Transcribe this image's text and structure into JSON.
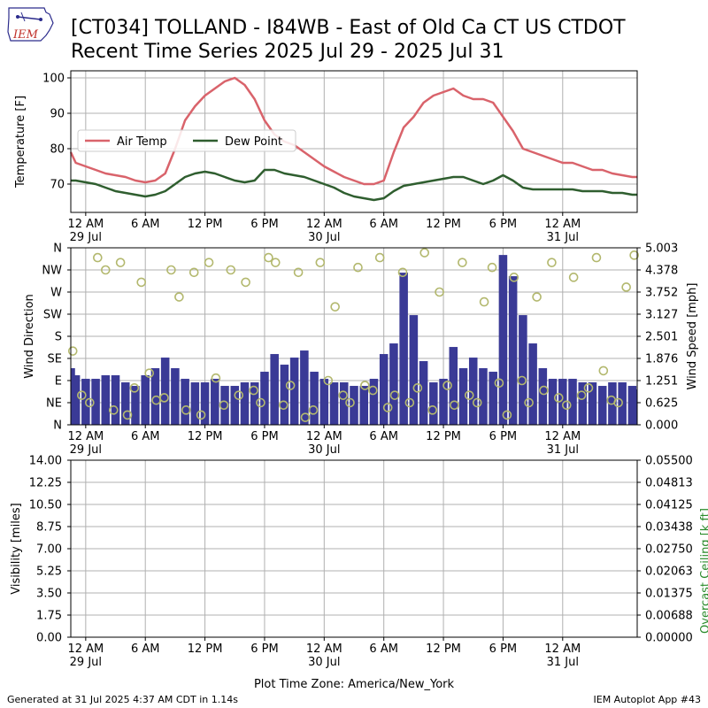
{
  "header": {
    "logo_text": "IEM",
    "title_line1": "[CT034] TOLLAND - I84WB - East of Old Ca CT US  CTDOT",
    "title_line2": "Recent Time Series 2025 Jul 29 - 2025 Jul 31"
  },
  "footer": {
    "generated": "Generated at 31 Jul 2025 4:37 AM CDT in 1.14s",
    "app": "IEM Autoplot App #43"
  },
  "colors": {
    "air_temp": "#d9636b",
    "dew_point": "#2f5e2f",
    "wind_speed_bars": "#3a3a96",
    "wind_dir_markers": "#b3b86e",
    "ceiling_axis": "#2a8a2a",
    "grid": "#b0b0b0"
  },
  "chart_data": [
    {
      "type": "line",
      "ylabel": "Temperature [F]",
      "ylim": [
        62,
        102
      ],
      "yticks": [
        70,
        80,
        90,
        100
      ],
      "x_unit": "hours since 2025-07-29 00:00 local",
      "xlim": [
        -1.5,
        55.5
      ],
      "xticks": [
        {
          "label": "12 AM",
          "sub": "29 Jul"
        },
        {
          "label": "6 AM",
          "sub": ""
        },
        {
          "label": "12 PM",
          "sub": ""
        },
        {
          "label": "6 PM",
          "sub": ""
        },
        {
          "label": "12 AM",
          "sub": "30 Jul"
        },
        {
          "label": "6 AM",
          "sub": ""
        },
        {
          "label": "12 PM",
          "sub": ""
        },
        {
          "label": "6 PM",
          "sub": ""
        },
        {
          "label": "12 AM",
          "sub": "31 Jul"
        }
      ],
      "grid": true,
      "legend_position": "center-left",
      "series": [
        {
          "name": "Air Temp",
          "x": [
            -1.5,
            -1,
            0,
            1,
            2,
            3,
            4,
            5,
            6,
            7,
            8,
            9,
            10,
            11,
            12,
            13,
            14,
            15,
            16,
            17,
            18,
            19,
            20,
            21,
            22,
            23,
            24,
            25,
            26,
            27,
            28,
            29,
            30,
            31,
            32,
            33,
            34,
            35,
            36,
            37,
            38,
            39,
            40,
            41,
            42,
            43,
            44,
            45,
            46,
            47,
            48,
            49,
            50,
            51,
            52,
            53,
            54,
            55,
            55.5
          ],
          "y": [
            79,
            76,
            75,
            74,
            73,
            72.5,
            72,
            71,
            70.5,
            71,
            73,
            80,
            88,
            92,
            95,
            97,
            99,
            100,
            98,
            94,
            88,
            84,
            82,
            81,
            79,
            77,
            75,
            73.5,
            72,
            71,
            70,
            70,
            71,
            79,
            86,
            89,
            93,
            95,
            96,
            97,
            95,
            94,
            94,
            93,
            89,
            85,
            80,
            79,
            78,
            77,
            76,
            76,
            75,
            74,
            74,
            73,
            72.5,
            72,
            72
          ]
        },
        {
          "name": "Dew Point",
          "x": [
            -1.5,
            -1,
            0,
            1,
            2,
            3,
            4,
            5,
            6,
            7,
            8,
            9,
            10,
            11,
            12,
            13,
            14,
            15,
            16,
            17,
            18,
            19,
            20,
            21,
            22,
            23,
            24,
            25,
            26,
            27,
            28,
            29,
            30,
            31,
            32,
            33,
            34,
            35,
            36,
            37,
            38,
            39,
            40,
            41,
            42,
            43,
            44,
            45,
            46,
            47,
            48,
            49,
            50,
            51,
            52,
            53,
            54,
            55,
            55.5
          ],
          "y": [
            71,
            71,
            70.5,
            70,
            69,
            68,
            67.5,
            67,
            66.5,
            67,
            68,
            70,
            72,
            73,
            73.5,
            73,
            72,
            71,
            70.5,
            71,
            74,
            74,
            73,
            72.5,
            72,
            71,
            70,
            69,
            67.5,
            66.5,
            66,
            65.5,
            66,
            68,
            69.5,
            70,
            70.5,
            71,
            71.5,
            72,
            72,
            71,
            70,
            71,
            72.5,
            71,
            69,
            68.5,
            68.5,
            68.5,
            68.5,
            68.5,
            68,
            68,
            68,
            67.5,
            67.5,
            67,
            67
          ]
        }
      ]
    },
    {
      "type": "bar",
      "ylabel": "Wind Direction",
      "ylabel_right": "Wind Speed [mph]",
      "direction_ticks": [
        "N",
        "NE",
        "E",
        "SE",
        "S",
        "SW",
        "W",
        "NW",
        "N"
      ],
      "ylim_direction": [
        0,
        360
      ],
      "ylim_speed": [
        0,
        5.003
      ],
      "speed_ticks": [
        "0.000",
        "0.625",
        "1.251",
        "1.876",
        "2.501",
        "3.127",
        "3.752",
        "4.378",
        "5.003"
      ],
      "xlim": [
        -1.5,
        55.5
      ],
      "grid": true,
      "series": [
        {
          "name": "Wind Speed",
          "x": [
            -1.5,
            -1,
            0,
            1,
            2,
            3,
            4,
            5,
            6,
            7,
            8,
            9,
            10,
            11,
            12,
            13,
            14,
            15,
            16,
            17,
            18,
            19,
            20,
            21,
            22,
            23,
            24,
            25,
            26,
            27,
            28,
            29,
            30,
            31,
            32,
            33,
            34,
            35,
            36,
            37,
            38,
            39,
            40,
            41,
            42,
            43,
            44,
            45,
            46,
            47,
            48,
            49,
            50,
            51,
            52,
            53,
            54,
            55,
            55.5
          ],
          "values": [
            1.6,
            1.4,
            1.3,
            1.3,
            1.4,
            1.4,
            1.2,
            1.1,
            1.4,
            1.6,
            1.9,
            1.6,
            1.3,
            1.2,
            1.2,
            1.3,
            1.1,
            1.1,
            1.2,
            1.2,
            1.5,
            2.0,
            1.7,
            1.9,
            2.1,
            1.5,
            1.3,
            1.2,
            1.2,
            1.1,
            1.1,
            1.3,
            2.0,
            2.3,
            4.3,
            3.1,
            1.8,
            1.2,
            1.3,
            2.2,
            1.6,
            1.9,
            1.6,
            1.5,
            4.8,
            4.2,
            3.1,
            2.3,
            1.6,
            1.3,
            1.3,
            1.3,
            1.2,
            1.2,
            1.1,
            1.2,
            1.2,
            1.1,
            1.0
          ]
        },
        {
          "name": "Wind Direction",
          "x": [
            -1.3,
            -0.4,
            0.4,
            1.2,
            2.0,
            2.8,
            3.5,
            4.2,
            4.9,
            5.6,
            6.4,
            7.1,
            7.9,
            8.6,
            9.4,
            10.1,
            10.9,
            11.6,
            12.4,
            13.1,
            13.9,
            14.6,
            15.4,
            16.1,
            16.9,
            17.6,
            18.4,
            19.1,
            19.9,
            20.6,
            21.4,
            22.1,
            22.9,
            23.6,
            24.4,
            25.1,
            25.9,
            26.6,
            27.4,
            28.1,
            28.9,
            29.6,
            30.4,
            31.1,
            31.9,
            32.6,
            33.4,
            34.1,
            34.9,
            35.6,
            36.4,
            37.1,
            37.9,
            38.6,
            39.4,
            40.1,
            40.9,
            41.6,
            42.4,
            43.1,
            43.9,
            44.6,
            45.4,
            46.1,
            46.9,
            47.6,
            48.4,
            49.1,
            49.9,
            50.6,
            51.4,
            52.1,
            52.9,
            53.6,
            54.4,
            55.2
          ],
          "y": [
            150,
            60,
            45,
            340,
            315,
            30,
            330,
            20,
            75,
            290,
            105,
            50,
            55,
            315,
            260,
            30,
            310,
            20,
            330,
            95,
            40,
            315,
            60,
            290,
            70,
            45,
            340,
            330,
            40,
            80,
            310,
            15,
            30,
            330,
            90,
            240,
            60,
            45,
            320,
            80,
            70,
            340,
            35,
            60,
            310,
            45,
            75,
            350,
            30,
            270,
            80,
            40,
            330,
            60,
            45,
            250,
            320,
            85,
            20,
            300,
            90,
            45,
            260,
            70,
            330,
            55,
            40,
            300,
            60,
            75,
            340,
            110,
            50,
            45,
            280,
            345
          ]
        }
      ]
    },
    {
      "type": "line",
      "ylabel": "Visibility [miles]",
      "ylabel_right": "Overcast Ceiling [k ft]",
      "ylim": [
        0,
        14
      ],
      "yticks": [
        "0.00",
        "1.75",
        "3.50",
        "5.25",
        "7.00",
        "8.75",
        "10.50",
        "12.25",
        "14.00"
      ],
      "ylim_right": [
        0,
        0.055
      ],
      "yticks_right": [
        "0.00000",
        "0.00688",
        "0.01375",
        "0.02063",
        "0.02750",
        "0.03438",
        "0.04125",
        "0.04813",
        "0.05500"
      ],
      "xlabel": "Plot Time Zone: America/New_York",
      "xlim": [
        -1.5,
        55.5
      ],
      "grid": true,
      "series": []
    }
  ]
}
